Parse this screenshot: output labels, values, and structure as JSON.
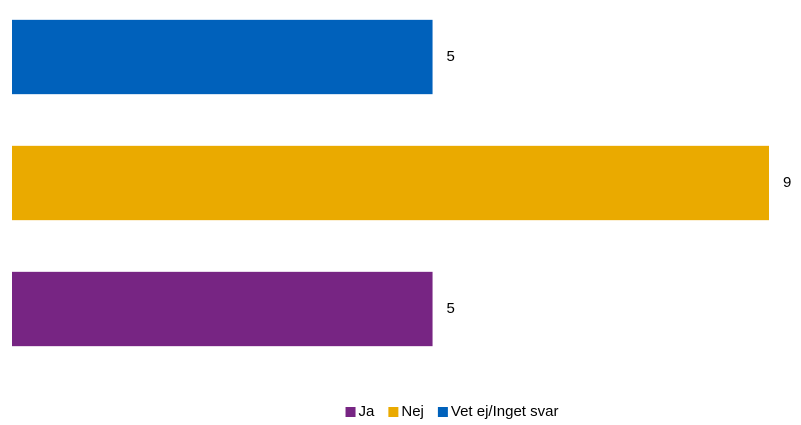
{
  "chart_data": {
    "type": "bar",
    "orientation": "horizontal",
    "series": [
      {
        "name": "Ja",
        "color": "#772583",
        "values": [
          5
        ]
      },
      {
        "name": "Nej",
        "color": "#eaaa00",
        "values": [
          9
        ]
      },
      {
        "name": "Vet ej/Inget svar",
        "color": "#0061bb",
        "values": [
          5
        ]
      }
    ],
    "xlim": [
      0,
      9
    ],
    "legend": "bottom"
  }
}
